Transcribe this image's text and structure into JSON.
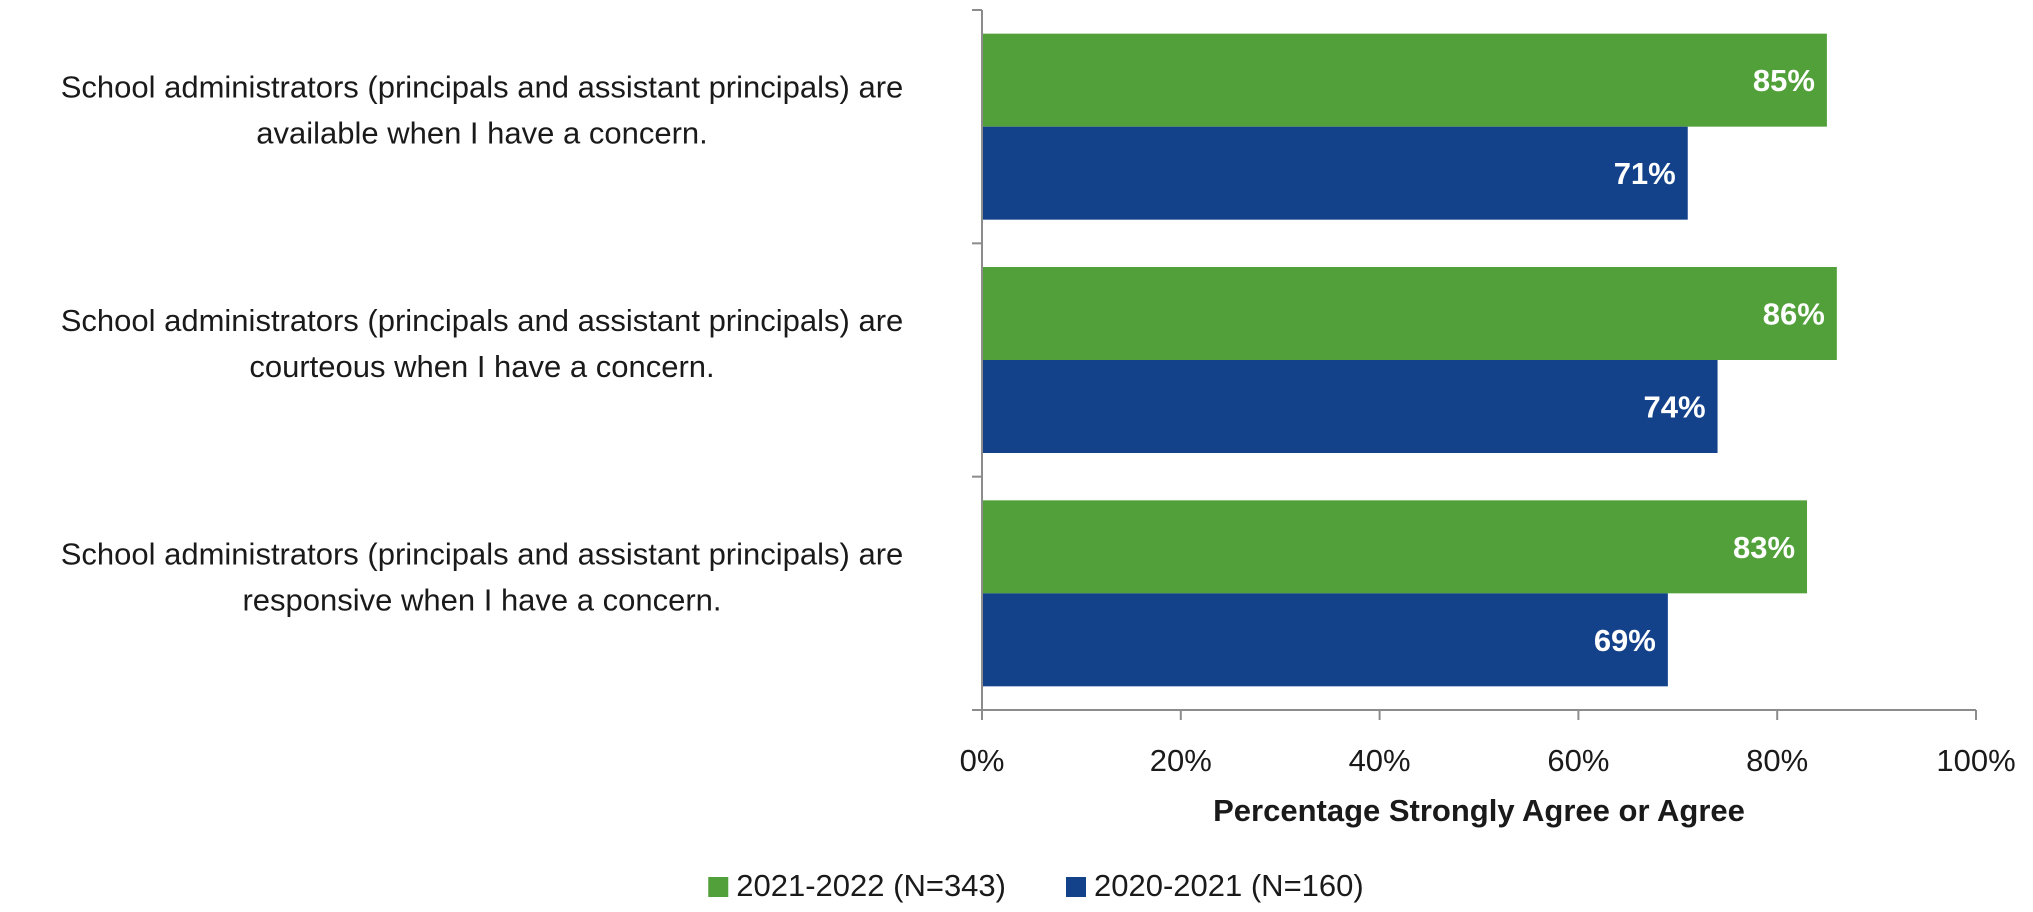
{
  "chart_data": {
    "type": "bar",
    "orientation": "horizontal",
    "categories": [
      [
        "School administrators (principals and assistant principals) are",
        "available when I have a concern."
      ],
      [
        "School administrators (principals and assistant principals) are",
        "courteous when I have a concern."
      ],
      [
        "School administrators (principals and assistant principals) are",
        "responsive when I have a concern."
      ]
    ],
    "series": [
      {
        "name": "2021-2022 (N=343)",
        "color": "#52a03a",
        "values": [
          85,
          86,
          83
        ],
        "labels": [
          "85%",
          "86%",
          "83%"
        ]
      },
      {
        "name": "2020-2021 (N=160)",
        "color": "#13428a",
        "values": [
          71,
          74,
          69
        ],
        "labels": [
          "71%",
          "74%",
          "69%"
        ]
      }
    ],
    "xlabel": "Percentage Strongly Agree or Agree",
    "xlim": [
      0,
      100
    ],
    "xticks": [
      0,
      20,
      40,
      60,
      80,
      100
    ],
    "xtick_labels": [
      "0%",
      "20%",
      "40%",
      "60%",
      "80%",
      "100%"
    ],
    "grid": false,
    "legend": "bottom-center"
  }
}
